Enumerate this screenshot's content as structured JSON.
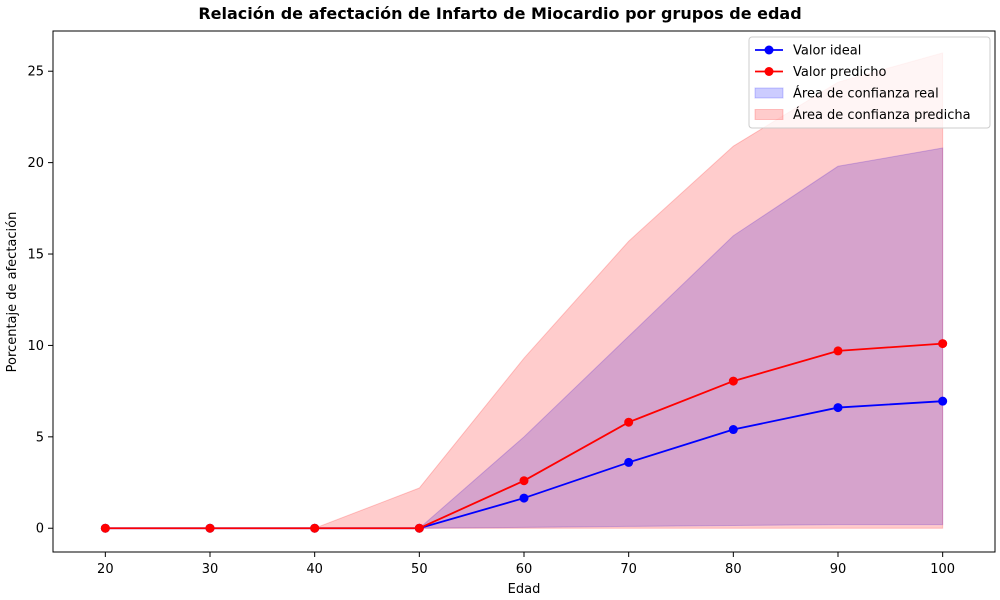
{
  "chart_data": {
    "type": "line",
    "title": "Relación de afectación de Infarto de Miocardio por grupos de edad",
    "xlabel": "Edad",
    "ylabel": "Porcentaje de afectación",
    "x": [
      20,
      30,
      40,
      50,
      60,
      70,
      80,
      90,
      100
    ],
    "xlim": [
      15,
      105
    ],
    "ylim": [
      -1.3,
      27.2
    ],
    "xticks": [
      20,
      30,
      40,
      50,
      60,
      70,
      80,
      90,
      100
    ],
    "yticks": [
      0,
      5,
      10,
      15,
      20,
      25
    ],
    "grid": false,
    "legend_position": "top-right",
    "series": [
      {
        "name": "Valor ideal",
        "color": "#0000ff",
        "marker": "circle",
        "values": [
          0,
          0,
          0,
          0,
          1.65,
          3.6,
          5.4,
          6.6,
          6.95
        ]
      },
      {
        "name": "Valor predicho",
        "color": "#ff0000",
        "marker": "circle",
        "values": [
          0,
          0,
          0,
          0,
          2.6,
          5.8,
          8.05,
          9.7,
          10.1
        ]
      }
    ],
    "bands": [
      {
        "name": "Área de confianza real",
        "color": "#0000ff",
        "opacity": 0.2,
        "lower": [
          0,
          0,
          0,
          0,
          0.05,
          0.1,
          0.15,
          0.2,
          0.2
        ],
        "upper": [
          0,
          0,
          0,
          0,
          5.0,
          10.5,
          16.0,
          19.8,
          20.8
        ]
      },
      {
        "name": "Área de confianza predicha",
        "color": "#ff0000",
        "opacity": 0.2,
        "lower": [
          0,
          0,
          0,
          0,
          0,
          0,
          0,
          0,
          0
        ],
        "upper": [
          0,
          0,
          0,
          2.2,
          9.3,
          15.7,
          20.9,
          24.4,
          26.0
        ]
      }
    ]
  }
}
